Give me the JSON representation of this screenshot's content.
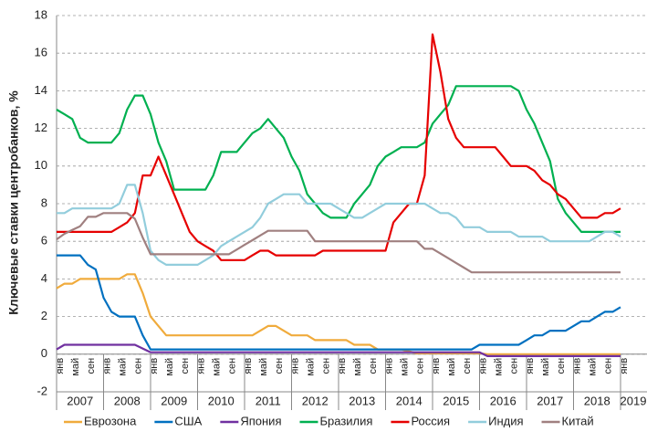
{
  "chart_data": {
    "type": "line",
    "y_axis_label": "Ключевые ставки центробанков, %",
    "categories": [
      "янв",
      null,
      "май",
      null,
      "сен",
      null,
      "янв",
      null,
      "май",
      null,
      "сен",
      null,
      "янв",
      null,
      "май",
      null,
      "сен",
      null,
      "янв",
      null,
      "май",
      null,
      "сен",
      null,
      "янв",
      null,
      "май",
      null,
      "сен",
      null,
      "янв",
      null,
      "май",
      null,
      "сен",
      null,
      "янв",
      null,
      "май",
      null,
      "сен",
      null,
      "янв",
      null,
      "май",
      null,
      "сен",
      null,
      "янв",
      null,
      "май",
      null,
      "сен",
      null,
      "янв",
      null,
      "май",
      null,
      "сен",
      null,
      "янв",
      null,
      "май",
      null,
      "сен",
      null,
      "янв",
      null,
      "май",
      null,
      "сен",
      null,
      "янв"
    ],
    "years": [
      "2007",
      "2008",
      "2009",
      "2010",
      "2011",
      "2012",
      "2013",
      "2014",
      "2015",
      "2016",
      "2017",
      "2018",
      "2019"
    ],
    "ylim": [
      -2,
      18
    ],
    "yticks": [
      -2,
      0,
      2,
      4,
      6,
      8,
      10,
      12,
      14,
      16,
      18
    ],
    "grid": true,
    "series": [
      {
        "name": "Еврозона",
        "color": "#f0ab3c",
        "values": [
          3.5,
          3.75,
          3.75,
          4,
          4,
          4,
          4,
          4,
          4,
          4.25,
          4.25,
          3.25,
          2,
          1.5,
          1,
          1,
          1,
          1,
          1,
          1,
          1,
          1,
          1,
          1,
          1,
          1,
          1.25,
          1.5,
          1.5,
          1.25,
          1,
          1,
          1,
          0.75,
          0.75,
          0.75,
          0.75,
          0.75,
          0.5,
          0.5,
          0.5,
          0.25,
          0.25,
          0.25,
          0.25,
          0.15,
          0.05,
          0.05,
          0.05,
          0.05,
          0.05,
          0.05,
          0.05,
          0.05,
          0.05,
          0,
          0,
          0,
          0,
          0,
          0,
          0,
          0,
          0,
          0,
          0,
          0,
          0,
          0,
          0,
          0,
          0,
          0
        ]
      },
      {
        "name": "США",
        "color": "#0070c0",
        "values": [
          5.25,
          5.25,
          5.25,
          5.25,
          4.75,
          4.5,
          3,
          2.25,
          2,
          2,
          2,
          1,
          0.25,
          0.25,
          0.25,
          0.25,
          0.25,
          0.25,
          0.25,
          0.25,
          0.25,
          0.25,
          0.25,
          0.25,
          0.25,
          0.25,
          0.25,
          0.25,
          0.25,
          0.25,
          0.25,
          0.25,
          0.25,
          0.25,
          0.25,
          0.25,
          0.25,
          0.25,
          0.25,
          0.25,
          0.25,
          0.25,
          0.25,
          0.25,
          0.25,
          0.25,
          0.25,
          0.25,
          0.25,
          0.25,
          0.25,
          0.25,
          0.25,
          0.25,
          0.5,
          0.5,
          0.5,
          0.5,
          0.5,
          0.5,
          0.75,
          1,
          1,
          1.25,
          1.25,
          1.25,
          1.5,
          1.75,
          1.75,
          2,
          2.25,
          2.25,
          2.5
        ]
      },
      {
        "name": "Япония",
        "color": "#7030a0",
        "values": [
          0.25,
          0.5,
          0.5,
          0.5,
          0.5,
          0.5,
          0.5,
          0.5,
          0.5,
          0.5,
          0.5,
          0.3,
          0.1,
          0.1,
          0.1,
          0.1,
          0.1,
          0.1,
          0.1,
          0.1,
          0.1,
          0.1,
          0.1,
          0.1,
          0.1,
          0.1,
          0.1,
          0.1,
          0.1,
          0.1,
          0.1,
          0.1,
          0.1,
          0.1,
          0.1,
          0.1,
          0.1,
          0.1,
          0.1,
          0.1,
          0.1,
          0.1,
          0.1,
          0.1,
          0.1,
          0.1,
          0.1,
          0.1,
          0.1,
          0.1,
          0.1,
          0.1,
          0.1,
          0.1,
          0.1,
          -0.1,
          -0.1,
          -0.1,
          -0.1,
          -0.1,
          -0.1,
          -0.1,
          -0.1,
          -0.1,
          -0.1,
          -0.1,
          -0.1,
          -0.1,
          -0.1,
          -0.1,
          -0.1,
          -0.1,
          -0.1
        ]
      },
      {
        "name": "Бразилия",
        "color": "#00b050",
        "values": [
          13,
          12.75,
          12.5,
          11.5,
          11.25,
          11.25,
          11.25,
          11.25,
          11.75,
          13,
          13.75,
          13.75,
          12.75,
          11.25,
          10.25,
          8.75,
          8.75,
          8.75,
          8.75,
          8.75,
          9.5,
          10.75,
          10.75,
          10.75,
          11.25,
          11.75,
          12,
          12.5,
          12,
          11.5,
          10.5,
          9.75,
          8.5,
          8,
          7.5,
          7.25,
          7.25,
          7.25,
          8,
          8.5,
          9,
          10,
          10.5,
          10.75,
          11,
          11,
          11,
          11.25,
          12.25,
          12.75,
          13.25,
          14.25,
          14.25,
          14.25,
          14.25,
          14.25,
          14.25,
          14.25,
          14.25,
          14,
          13,
          12.25,
          11.25,
          10.25,
          8.25,
          7.5,
          7,
          6.5,
          6.5,
          6.5,
          6.5,
          6.5,
          6.5
        ]
      },
      {
        "name": "Россия",
        "color": "#e60000",
        "values": [
          6.5,
          6.5,
          6.5,
          6.5,
          6.5,
          6.5,
          6.5,
          6.5,
          6.75,
          7,
          7.5,
          9.5,
          9.5,
          10.5,
          9.5,
          8.5,
          7.5,
          6.5,
          6,
          5.75,
          5.5,
          5,
          5,
          5,
          5,
          5.25,
          5.5,
          5.5,
          5.25,
          5.25,
          5.25,
          5.25,
          5.25,
          5.25,
          5.5,
          5.5,
          5.5,
          5.5,
          5.5,
          5.5,
          5.5,
          5.5,
          5.5,
          7,
          7.5,
          8,
          8,
          9.5,
          17,
          15,
          12.5,
          11.5,
          11,
          11,
          11,
          11,
          11,
          10.5,
          10,
          10,
          10,
          9.75,
          9.25,
          9,
          8.5,
          8.25,
          7.75,
          7.25,
          7.25,
          7.25,
          7.5,
          7.5,
          7.75
        ]
      },
      {
        "name": "Индия",
        "color": "#92cddc",
        "values": [
          7.5,
          7.5,
          7.75,
          7.75,
          7.75,
          7.75,
          7.75,
          7.75,
          8,
          9,
          9,
          7.5,
          5.5,
          5,
          4.75,
          4.75,
          4.75,
          4.75,
          4.75,
          5,
          5.25,
          5.75,
          6,
          6.25,
          6.5,
          6.75,
          7.25,
          8,
          8.25,
          8.5,
          8.5,
          8.5,
          8,
          8,
          8,
          8,
          7.75,
          7.5,
          7.25,
          7.25,
          7.5,
          7.75,
          8,
          8,
          8,
          8,
          8,
          8,
          7.75,
          7.5,
          7.5,
          7.25,
          6.75,
          6.75,
          6.75,
          6.5,
          6.5,
          6.5,
          6.5,
          6.25,
          6.25,
          6.25,
          6.25,
          6,
          6,
          6,
          6,
          6,
          6,
          6.25,
          6.5,
          6.5,
          6.25
        ]
      },
      {
        "name": "Китай",
        "color": "#a08080",
        "values": [
          6.1,
          6.4,
          6.6,
          6.8,
          7.3,
          7.3,
          7.5,
          7.5,
          7.5,
          7.5,
          7.2,
          6.2,
          5.31,
          5.31,
          5.31,
          5.31,
          5.31,
          5.31,
          5.31,
          5.31,
          5.31,
          5.31,
          5.31,
          5.56,
          5.81,
          6.06,
          6.31,
          6.56,
          6.56,
          6.56,
          6.56,
          6.56,
          6.56,
          6,
          6,
          6,
          6,
          6,
          6,
          6,
          6,
          6,
          6,
          6,
          6,
          6,
          6,
          5.6,
          5.6,
          5.35,
          5.1,
          4.85,
          4.6,
          4.35,
          4.35,
          4.35,
          4.35,
          4.35,
          4.35,
          4.35,
          4.35,
          4.35,
          4.35,
          4.35,
          4.35,
          4.35,
          4.35,
          4.35,
          4.35,
          4.35,
          4.35,
          4.35,
          4.35
        ]
      }
    ]
  }
}
